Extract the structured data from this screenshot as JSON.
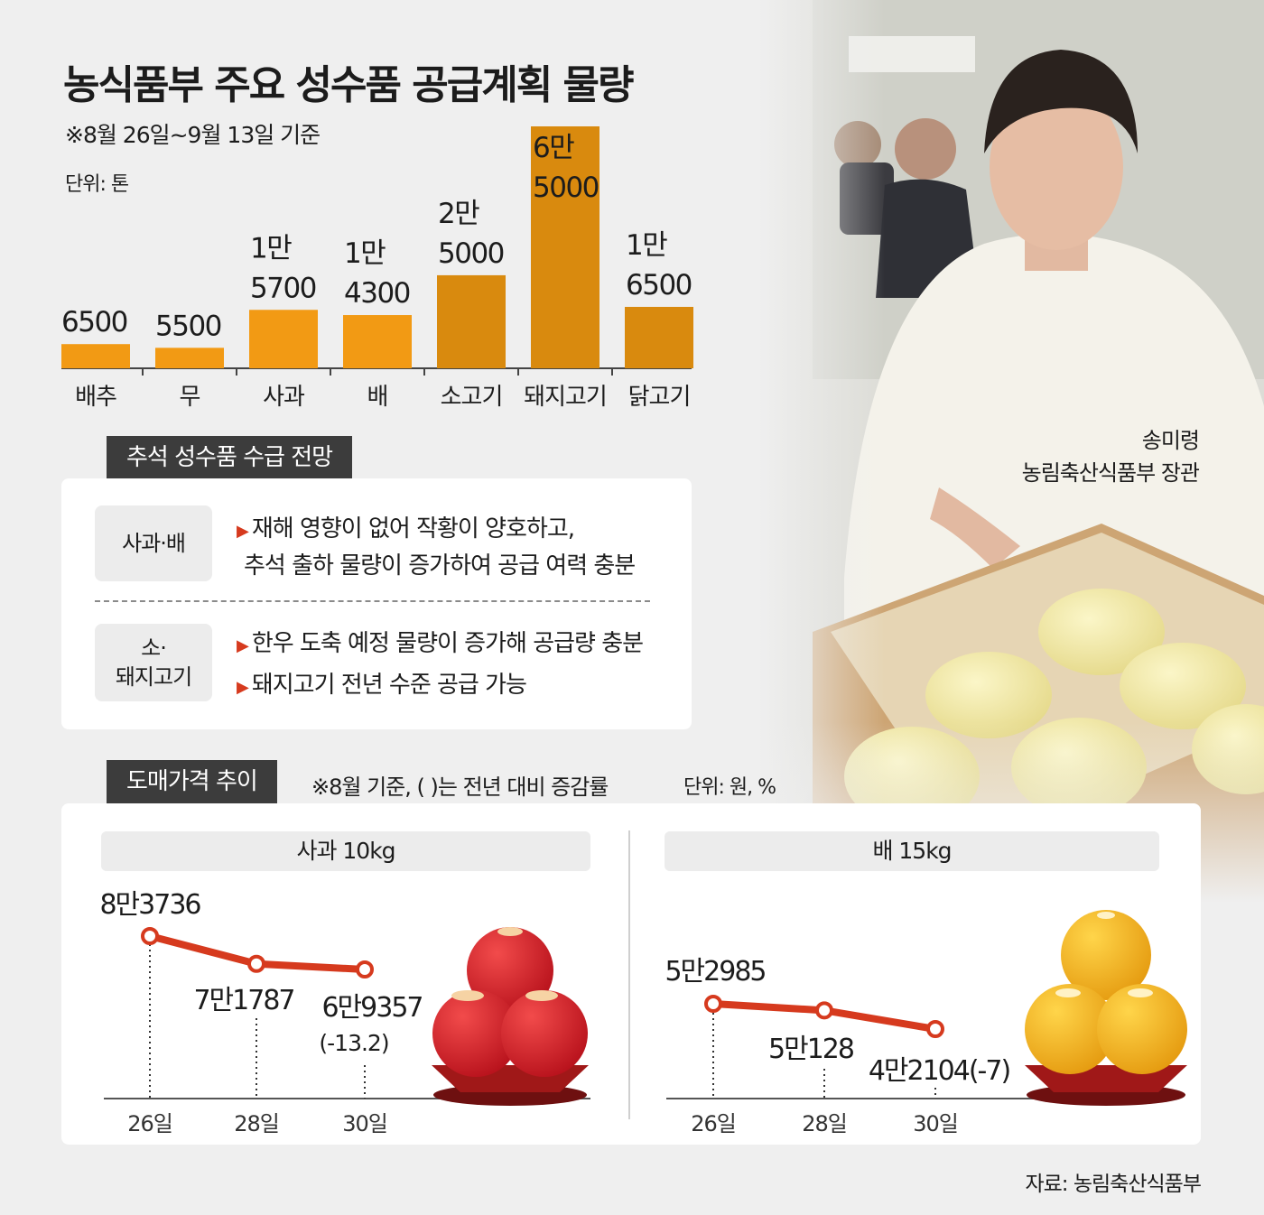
{
  "title": "농식품부 주요 성수품 공급계획 물량",
  "subtitle": "※8월 26일~9월 13일 기준",
  "unit": "단위: 톤",
  "chart_data": [
    {
      "type": "bar",
      "title": "농식품부 주요 성수품 공급계획 물량",
      "categories": [
        "배추",
        "무",
        "사과",
        "배",
        "소고기",
        "돼지고기",
        "닭고기"
      ],
      "values": [
        6500,
        5500,
        15700,
        14300,
        25000,
        65000,
        16500
      ],
      "value_labels": [
        [
          "6500"
        ],
        [
          "5500"
        ],
        [
          "1만",
          "5700"
        ],
        [
          "1만",
          "4300"
        ],
        [
          "2만",
          "5000"
        ],
        [
          "6만",
          "5000"
        ],
        [
          "1만",
          "6500"
        ]
      ],
      "colors": [
        "#f29a14",
        "#f29a14",
        "#f29a14",
        "#f29a14",
        "#d98a0e",
        "#d98a0e",
        "#d98a0e"
      ],
      "ylabel": "단위: 톤"
    },
    {
      "type": "line",
      "title": "사과 10kg",
      "x": [
        "26일",
        "28일",
        "30일"
      ],
      "values": [
        83736,
        71787,
        69357
      ],
      "value_labels": [
        "8만3736",
        "7만1787",
        "6만9357"
      ],
      "note": "(-13.2)"
    },
    {
      "type": "line",
      "title": "배 15kg",
      "x": [
        "26일",
        "28일",
        "30일"
      ],
      "values": [
        52985,
        50128,
        42104
      ],
      "value_labels": [
        "5만2985",
        "5만128",
        "4만2104(-7)"
      ]
    }
  ],
  "outlook": {
    "tag": "추석 성수품 수급 전망",
    "rows": [
      {
        "label_lines": [
          "사과·배"
        ],
        "lines": [
          "재해 영향이 없어 작황이 양호하고,",
          "추석 출하 물량이 증가하여 공급 여력 충분"
        ],
        "bullets": [
          true,
          false
        ]
      },
      {
        "label_lines": [
          "소·",
          "돼지고기"
        ],
        "lines": [
          "한우 도축 예정 물량이 증가해 공급량 충분",
          "돼지고기 전년 수준 공급 가능"
        ],
        "bullets": [
          true,
          true
        ]
      }
    ]
  },
  "price": {
    "tag": "도매가격 추이",
    "note": "※8월 기준, ( )는 전년 대비 증감률",
    "unit": "단위: 원, %"
  },
  "caption": {
    "name": "송미령",
    "role": "농림축산식품부 장관"
  },
  "source": "자료: 농림축산식품부",
  "colors": {
    "accent_red": "#d63a1e",
    "bar": "#f29a14",
    "bar_dark": "#d98a0e",
    "tag_bg": "#3c3c3c"
  }
}
